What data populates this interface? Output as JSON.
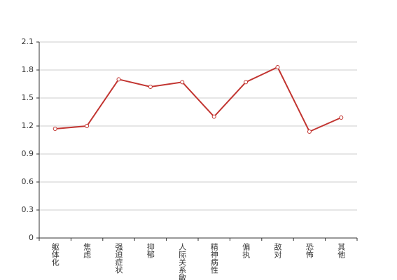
{
  "chart_data": {
    "type": "line",
    "categories": [
      "躯体化",
      "焦虑",
      "强迫症状",
      "抑郁",
      "人际关系敏感",
      "精神病性",
      "偏执",
      "敌对",
      "恐怖",
      "其他"
    ],
    "values": [
      1.17,
      1.2,
      1.7,
      1.62,
      1.67,
      1.3,
      1.67,
      1.83,
      1.14,
      1.29
    ],
    "color": "#c23531",
    "ylim": [
      0,
      2.1
    ],
    "yticks": [
      0,
      0.3,
      0.6,
      0.9,
      1.2,
      1.5,
      1.8,
      2.1
    ],
    "grid": true
  }
}
